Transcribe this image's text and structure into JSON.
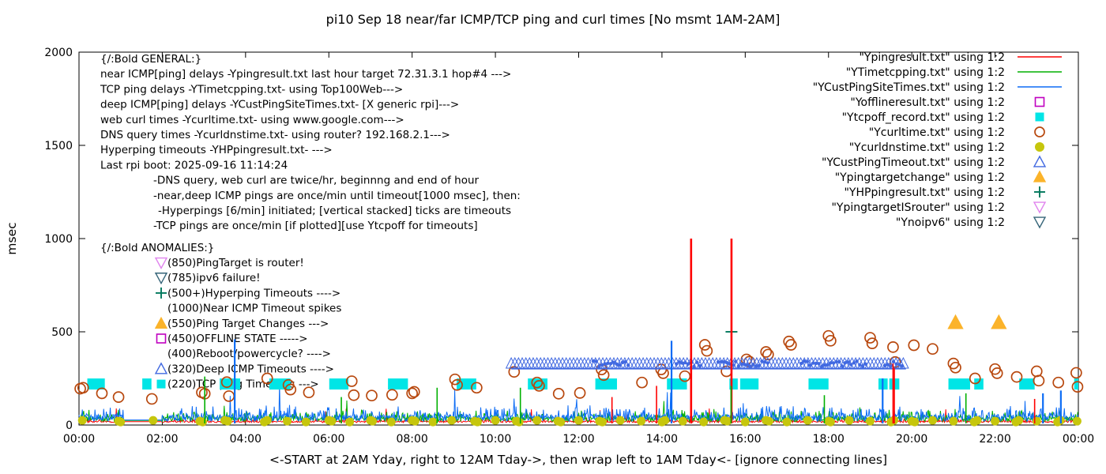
{
  "title": "pi10 Sep 18  near/far ICMP/TCP ping and curl times [No msmt 1AM-2AM]",
  "x_axis": {
    "label": "<-START at 2AM Yday, right to 12AM Tday->, then wrap left to 1AM Tday<- [ignore connecting lines]",
    "ticks": [
      "00:00",
      "02:00",
      "04:00",
      "06:00",
      "08:00",
      "10:00",
      "12:00",
      "14:00",
      "16:00",
      "18:00",
      "20:00",
      "22:00",
      "00:00"
    ]
  },
  "y_axis": {
    "label": "msec",
    "ticks": [
      "0",
      "500",
      "1000",
      "1500",
      "2000"
    ],
    "max": 2000
  },
  "legend": {
    "position": "top-right",
    "items": [
      {
        "label": "\"Ypingresult.txt\" using 1:2",
        "swatch": "line",
        "color": "#ff0000"
      },
      {
        "label": "\"YTimetcpping.txt\" using 1:2",
        "swatch": "line",
        "color": "#00b000"
      },
      {
        "label": "\"YCustPingSiteTimes.txt\" using 1:2",
        "swatch": "line",
        "color": "#0d6cf5"
      },
      {
        "label": "\"Yofflineresult.txt\" using 1:2",
        "swatch": "square-open",
        "color": "#c000c0"
      },
      {
        "label": "\"Ytcpoff_record.txt\" using 1:2",
        "swatch": "square-filled",
        "color": "#00e5e6"
      },
      {
        "label": "\"Ycurltime.txt\" using 1:2",
        "swatch": "circle-open",
        "color": "#b8480e"
      },
      {
        "label": "\"Ycurldnstime.txt\" using 1:2",
        "swatch": "circle-filled",
        "color": "#c6c60c"
      },
      {
        "label": "\"YCustPingTimeout.txt\" using 1:2",
        "swatch": "triangle-up-open",
        "color": "#4169e1"
      },
      {
        "label": "\"Ypingtargetchange\" using 1:2",
        "swatch": "triangle-up-filled",
        "color": "#fbb32a"
      },
      {
        "label": "\"YHPpingresult.txt\" using 1:2",
        "swatch": "plus",
        "color": "#00785c"
      },
      {
        "label": "\"YpingtargetISrouter\" using 1:2",
        "swatch": "triangle-down-open",
        "color": "#e083ee"
      },
      {
        "label": "\"Ynoipv6\" using 1:2",
        "swatch": "triangle-down-open",
        "color": "#356478"
      }
    ]
  },
  "annotations": {
    "general": {
      "header": "{/:Bold GENERAL:}",
      "lines": [
        "near ICMP[ping] delays -Ypingresult.txt last hour target 72.31.3.1 hop#4 --->",
        "TCP ping delays -YTimetcpping.txt- using Top100Web--->",
        "deep ICMP[ping] delays -YCustPingSiteTimes.txt- [X generic rpi]--->",
        "web curl times -Ycurltime.txt- using www.google.com--->",
        "DNS query times -Ycurldnstime.txt- using router? 192.168.2.1--->",
        "Hyperping timeouts -YHPpingresult.txt- --->",
        "Last rpi boot: 2025-09-16 11:14:24"
      ],
      "notes": [
        "-DNS query, web curl are twice/hr, beginnng and end of hour",
        "-near,deep ICMP pings are once/min until timeout[1000 msec], then:",
        "-Hyperpings [6/min] initiated; [vertical stacked] ticks are timeouts",
        "-TCP pings are once/min [if plotted][use Ytcpoff for timeouts]"
      ]
    },
    "anomalies": {
      "header": "{/:Bold ANOMALIES:}",
      "items": [
        {
          "marker": "triangle-down-open",
          "color": "#e083ee",
          "label": "(850)PingTarget is router!"
        },
        {
          "marker": "triangle-down-open",
          "color": "#356478",
          "label": "(785)ipv6 failure!"
        },
        {
          "marker": "plus",
          "color": "#00785c",
          "label": "(500+)Hyperping Timeouts ---->"
        },
        {
          "marker": "none",
          "color": "",
          "label": "(1000)Near ICMP Timeout spikes"
        },
        {
          "marker": "triangle-up-filled",
          "color": "#fbb32a",
          "label": "(550)Ping Target Changes --->"
        },
        {
          "marker": "square-open",
          "color": "#c000c0",
          "label": "(450)OFFLINE STATE ----->"
        },
        {
          "marker": "none",
          "color": "",
          "label": "(400)Reboot/powercycle? ---->"
        },
        {
          "marker": "triangle-up-open",
          "color": "#4169e1",
          "label": "(320)Deep ICMP Timeouts ---->"
        },
        {
          "marker": "square-filled",
          "color": "#00e5e6",
          "label": "(220)TCP ping Timeouts --->"
        }
      ]
    }
  },
  "chart_data": {
    "type": "line+scatter",
    "x_unit": "hour of day (24h, 2-hour ticks)",
    "y_unit": "msec",
    "x_range": [
      0,
      24
    ],
    "y_range": [
      0,
      2000
    ],
    "grid": false,
    "legend_position": "top-right",
    "measurement_gap": {
      "start": 1.08,
      "end": 1.98,
      "note": "No msmt 1AM-2AM"
    },
    "series": [
      {
        "name": "Ypingresult.txt (near ICMP ping delay)",
        "style": "line",
        "color": "#ff0000",
        "render": "baseline-noise",
        "noise": {
          "seed": 101,
          "base": 13,
          "jitter": 9,
          "spike_p": 0.015,
          "spike_amp": 70
        },
        "gap_value": 18,
        "timeout_spikes": [
          [
            14.7,
            1000
          ],
          [
            15.67,
            1000
          ]
        ],
        "minor_spikes": [
          [
            12.8,
            150
          ],
          [
            13.87,
            210
          ],
          [
            19.55,
            330
          ],
          [
            19.58,
            305
          ],
          [
            22.95,
            140
          ]
        ]
      },
      {
        "name": "YTimetcpping.txt (TCP ping delay)",
        "style": "line",
        "color": "#00b000",
        "render": "baseline-noise",
        "noise": {
          "seed": 202,
          "base": 18,
          "jitter": 28,
          "spike_p": 0.012,
          "spike_amp": 100
        },
        "gap_value": 24,
        "minor_spikes": [
          [
            3.02,
            260
          ],
          [
            6.3,
            150
          ],
          [
            8.6,
            200
          ],
          [
            10.6,
            200
          ],
          [
            15.66,
            210
          ],
          [
            17.9,
            160
          ],
          [
            21.3,
            170
          ]
        ]
      },
      {
        "name": "YCustPingSiteTimes.txt (deep ICMP ping delay)",
        "style": "line",
        "color": "#0d6cf5",
        "render": "baseline-noise",
        "noise": {
          "seed": 303,
          "base": 20,
          "jitter": 36,
          "spike_p": 0.01,
          "spike_amp": 150
        },
        "gap_value": 27,
        "minor_spikes": [
          [
            3.74,
            460
          ],
          [
            14.23,
            452
          ],
          [
            19.3,
            250
          ],
          [
            23.15,
            170
          ],
          [
            23.58,
            185
          ]
        ]
      },
      {
        "name": "Yofflineresult.txt (offline state)",
        "style": "square-open",
        "color": "#c000c0",
        "points": []
      },
      {
        "name": "Ytcpoff_record.txt (TCP ping timeouts)",
        "style": "square-filled",
        "color": "#00e5e6",
        "value": 220,
        "segments": [
          [
            0.2,
            0.62
          ],
          [
            1.52,
            1.74
          ],
          [
            3.38,
            3.87
          ],
          [
            4.57,
            5.08
          ],
          [
            6.01,
            6.47
          ],
          [
            7.42,
            7.9
          ],
          [
            9.07,
            9.54
          ],
          [
            10.78,
            11.25
          ],
          [
            12.4,
            12.92
          ],
          [
            14.12,
            14.6
          ],
          [
            15.62,
            15.82
          ],
          [
            15.88,
            16.32
          ],
          [
            17.52,
            18.0
          ],
          [
            19.2,
            19.42
          ],
          [
            19.46,
            19.7
          ],
          [
            20.88,
            21.4
          ],
          [
            21.5,
            21.72
          ],
          [
            22.58,
            22.95
          ],
          [
            23.9,
            24.0
          ]
        ]
      },
      {
        "name": "Ycurltime.txt (web curl times)",
        "style": "circle-open",
        "color": "#b8480e",
        "points": [
          [
            0.03,
            195
          ],
          [
            0.1,
            200
          ],
          [
            0.55,
            170
          ],
          [
            0.95,
            150
          ],
          [
            1.75,
            140
          ],
          [
            2.95,
            175
          ],
          [
            3.02,
            168
          ],
          [
            3.55,
            230
          ],
          [
            3.6,
            155
          ],
          [
            4.52,
            250
          ],
          [
            5.03,
            215
          ],
          [
            5.08,
            190
          ],
          [
            5.52,
            175
          ],
          [
            6.55,
            235
          ],
          [
            6.6,
            160
          ],
          [
            7.03,
            158
          ],
          [
            7.52,
            162
          ],
          [
            8.0,
            170
          ],
          [
            8.05,
            178
          ],
          [
            9.03,
            245
          ],
          [
            9.08,
            215
          ],
          [
            9.55,
            200
          ],
          [
            10.45,
            285
          ],
          [
            11.0,
            228
          ],
          [
            11.05,
            210
          ],
          [
            11.52,
            168
          ],
          [
            12.03,
            172
          ],
          [
            12.55,
            298
          ],
          [
            12.6,
            268
          ],
          [
            13.52,
            228
          ],
          [
            13.98,
            298
          ],
          [
            14.03,
            278
          ],
          [
            14.55,
            262
          ],
          [
            15.03,
            430
          ],
          [
            15.08,
            398
          ],
          [
            15.55,
            288
          ],
          [
            16.03,
            352
          ],
          [
            16.1,
            340
          ],
          [
            16.5,
            392
          ],
          [
            16.55,
            378
          ],
          [
            17.05,
            448
          ],
          [
            17.1,
            430
          ],
          [
            18.0,
            478
          ],
          [
            18.05,
            452
          ],
          [
            19.0,
            468
          ],
          [
            19.05,
            438
          ],
          [
            19.55,
            418
          ],
          [
            19.6,
            338
          ],
          [
            20.05,
            428
          ],
          [
            20.5,
            408
          ],
          [
            21.0,
            330
          ],
          [
            21.05,
            308
          ],
          [
            21.52,
            250
          ],
          [
            22.0,
            300
          ],
          [
            22.05,
            278
          ],
          [
            22.52,
            258
          ],
          [
            23.0,
            288
          ],
          [
            23.05,
            238
          ],
          [
            23.52,
            228
          ],
          [
            23.95,
            280
          ],
          [
            23.98,
            205
          ]
        ]
      },
      {
        "name": "Ycurldnstime.txt (DNS query times)",
        "style": "circle-filled",
        "color": "#c6c60c",
        "value": 25,
        "times": [
          0.08,
          0.95,
          1.0,
          1.78,
          2.9,
          2.97,
          3.5,
          3.57,
          4.45,
          4.52,
          5.0,
          5.45,
          6.0,
          6.07,
          6.5,
          7.0,
          7.05,
          7.5,
          8.0,
          8.07,
          8.5,
          8.95,
          9.5,
          9.57,
          10.0,
          10.5,
          10.57,
          11.0,
          11.5,
          11.57,
          12.0,
          12.5,
          12.57,
          13.0,
          13.5,
          14.0,
          14.07,
          14.5,
          15.0,
          15.5,
          15.57,
          16.0,
          16.5,
          16.57,
          17.0,
          17.5,
          18.0,
          18.05,
          18.5,
          19.0,
          19.5,
          19.57,
          20.0,
          20.07,
          20.5,
          21.0,
          21.5,
          21.57,
          22.0,
          22.5,
          22.57,
          23.0,
          23.5,
          23.57,
          23.97
        ]
      },
      {
        "name": "YCustPingTimeout.txt (deep ICMP timeouts)",
        "style": "triangle-up-open",
        "color": "#4169e1",
        "value": 320,
        "row": {
          "start": 10.38,
          "end": 19.86
        },
        "dense_ranges": [
          [
            12.35,
            13.25
          ],
          [
            14.35,
            14.95
          ],
          [
            15.35,
            16.55
          ],
          [
            17.35,
            18.95
          ],
          [
            19.35,
            19.8
          ]
        ]
      },
      {
        "name": "Ypingtargetchange (ping target changes)",
        "style": "triangle-up-filled",
        "color": "#fbb32a",
        "points": [
          [
            21.05,
            550
          ],
          [
            22.09,
            550
          ]
        ]
      },
      {
        "name": "YHPpingresult.txt (hyperping timeouts)",
        "style": "plus",
        "color": "#00785c",
        "points": [
          [
            15.67,
            500
          ]
        ]
      },
      {
        "name": "YpingtargetISrouter",
        "style": "triangle-down-open",
        "color": "#e083ee",
        "points": []
      },
      {
        "name": "Ynoipv6",
        "style": "triangle-down-open",
        "color": "#356478",
        "points": []
      }
    ]
  }
}
